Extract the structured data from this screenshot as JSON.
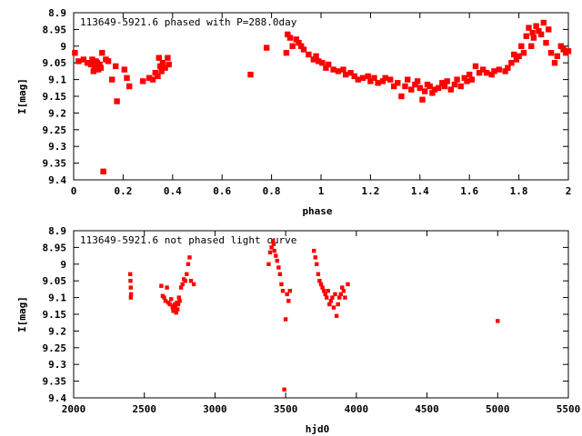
{
  "chart_data": [
    {
      "type": "scatter",
      "title": "113649-5921.6 phased with P=288.0day",
      "xlabel": "phase",
      "ylabel": "I[mag]",
      "xlim": [
        0,
        2
      ],
      "ylim": [
        9.4,
        8.9
      ],
      "y_inverted": true,
      "x_ticks": [
        "0",
        "0.2",
        "0.4",
        "0.6",
        "0.8",
        "1",
        "1.2",
        "1.4",
        "1.6",
        "1.8",
        "2"
      ],
      "y_ticks": [
        "8.9",
        "8.95",
        "9",
        "9.05",
        "9.1",
        "9.15",
        "9.2",
        "9.25",
        "9.3",
        "9.35",
        "9.4"
      ],
      "marker_color": "#ff0000",
      "grid": false,
      "points": [
        [
          0.005,
          9.02
        ],
        [
          0.02,
          9.045
        ],
        [
          0.04,
          9.04
        ],
        [
          0.055,
          9.05
        ],
        [
          0.07,
          9.055
        ],
        [
          0.075,
          9.04
        ],
        [
          0.08,
          9.075
        ],
        [
          0.085,
          9.06
        ],
        [
          0.09,
          9.045
        ],
        [
          0.095,
          9.05
        ],
        [
          0.1,
          9.07
        ],
        [
          0.105,
          9.055
        ],
        [
          0.11,
          9.065
        ],
        [
          0.115,
          9.02
        ],
        [
          0.12,
          9.375
        ],
        [
          0.13,
          9.04
        ],
        [
          0.14,
          9.045
        ],
        [
          0.155,
          9.1
        ],
        [
          0.17,
          9.06
        ],
        [
          0.175,
          9.165
        ],
        [
          0.205,
          9.07
        ],
        [
          0.215,
          9.095
        ],
        [
          0.225,
          9.12
        ],
        [
          0.28,
          9.105
        ],
        [
          0.305,
          9.095
        ],
        [
          0.32,
          9.1
        ],
        [
          0.33,
          9.08
        ],
        [
          0.34,
          9.09
        ],
        [
          0.345,
          9.035
        ],
        [
          0.35,
          9.06
        ],
        [
          0.355,
          9.075
        ],
        [
          0.36,
          9.05
        ],
        [
          0.37,
          9.065
        ],
        [
          0.38,
          9.035
        ],
        [
          0.385,
          9.055
        ],
        [
          0.715,
          9.085
        ],
        [
          0.78,
          9.005
        ],
        [
          0.86,
          9.02
        ],
        [
          0.865,
          8.965
        ],
        [
          0.875,
          8.975
        ],
        [
          0.885,
          9.0
        ],
        [
          0.9,
          8.98
        ],
        [
          0.91,
          8.99
        ],
        [
          0.92,
          9.0
        ],
        [
          0.93,
          9.01
        ],
        [
          0.95,
          9.025
        ],
        [
          0.97,
          9.04
        ],
        [
          0.98,
          9.03
        ],
        [
          0.99,
          9.045
        ],
        [
          1.005,
          9.05
        ],
        [
          1.02,
          9.065
        ],
        [
          1.03,
          9.055
        ],
        [
          1.05,
          9.07
        ],
        [
          1.07,
          9.075
        ],
        [
          1.09,
          9.07
        ],
        [
          1.1,
          9.085
        ],
        [
          1.12,
          9.08
        ],
        [
          1.135,
          9.09
        ],
        [
          1.15,
          9.1
        ],
        [
          1.17,
          9.095
        ],
        [
          1.19,
          9.09
        ],
        [
          1.2,
          9.105
        ],
        [
          1.215,
          9.095
        ],
        [
          1.23,
          9.11
        ],
        [
          1.25,
          9.105
        ],
        [
          1.26,
          9.095
        ],
        [
          1.28,
          9.1
        ],
        [
          1.295,
          9.12
        ],
        [
          1.31,
          9.11
        ],
        [
          1.325,
          9.15
        ],
        [
          1.34,
          9.12
        ],
        [
          1.35,
          9.1
        ],
        [
          1.365,
          9.13
        ],
        [
          1.38,
          9.115
        ],
        [
          1.39,
          9.105
        ],
        [
          1.4,
          9.125
        ],
        [
          1.41,
          9.16
        ],
        [
          1.42,
          9.135
        ],
        [
          1.43,
          9.115
        ],
        [
          1.44,
          9.12
        ],
        [
          1.45,
          9.14
        ],
        [
          1.46,
          9.13
        ],
        [
          1.475,
          9.125
        ],
        [
          1.49,
          9.11
        ],
        [
          1.5,
          9.12
        ],
        [
          1.51,
          9.105
        ],
        [
          1.525,
          9.13
        ],
        [
          1.54,
          9.115
        ],
        [
          1.55,
          9.1
        ],
        [
          1.565,
          9.12
        ],
        [
          1.58,
          9.095
        ],
        [
          1.59,
          9.105
        ],
        [
          1.6,
          9.085
        ],
        [
          1.61,
          9.1
        ],
        [
          1.625,
          9.06
        ],
        [
          1.64,
          9.08
        ],
        [
          1.655,
          9.07
        ],
        [
          1.67,
          9.08
        ],
        [
          1.69,
          9.085
        ],
        [
          1.7,
          9.075
        ],
        [
          1.72,
          9.07
        ],
        [
          1.745,
          9.075
        ],
        [
          1.755,
          9.065
        ],
        [
          1.77,
          9.05
        ],
        [
          1.78,
          9.025
        ],
        [
          1.79,
          9.04
        ],
        [
          1.8,
          9.03
        ],
        [
          1.81,
          9.0
        ],
        [
          1.82,
          9.02
        ],
        [
          1.83,
          8.97
        ],
        [
          1.84,
          8.945
        ],
        [
          1.85,
          9.0
        ],
        [
          1.855,
          8.96
        ],
        [
          1.86,
          8.975
        ],
        [
          1.87,
          8.94
        ],
        [
          1.88,
          8.955
        ],
        [
          1.89,
          8.965
        ],
        [
          1.9,
          8.93
        ],
        [
          1.91,
          8.99
        ],
        [
          1.92,
          8.95
        ],
        [
          1.93,
          9.02
        ],
        [
          1.945,
          9.05
        ],
        [
          1.955,
          9.03
        ],
        [
          1.97,
          9.0
        ],
        [
          1.98,
          9.01
        ],
        [
          1.99,
          9.02
        ],
        [
          2.0,
          9.015
        ]
      ]
    },
    {
      "type": "scatter",
      "title": "113649-5921.6 not phased light curve",
      "xlabel": "hjd0",
      "ylabel": "I[mag]",
      "xlim": [
        2000,
        5500
      ],
      "ylim": [
        9.4,
        8.9
      ],
      "y_inverted": true,
      "x_ticks": [
        "2000",
        "2500",
        "3000",
        "3500",
        "4000",
        "4500",
        "5000",
        "5500"
      ],
      "y_ticks": [
        "8.9",
        "8.95",
        "9",
        "9.05",
        "9.1",
        "9.15",
        "9.2",
        "9.25",
        "9.3",
        "9.35",
        "9.4"
      ],
      "marker_color": "#ff0000",
      "grid": false,
      "points": [
        [
          2400,
          9.03
        ],
        [
          2402,
          9.05
        ],
        [
          2404,
          9.07
        ],
        [
          2406,
          9.09
        ],
        [
          2405,
          9.1
        ],
        [
          2620,
          9.065
        ],
        [
          2630,
          9.095
        ],
        [
          2640,
          9.1
        ],
        [
          2650,
          9.11
        ],
        [
          2660,
          9.07
        ],
        [
          2670,
          9.115
        ],
        [
          2680,
          9.12
        ],
        [
          2690,
          9.105
        ],
        [
          2700,
          9.13
        ],
        [
          2705,
          9.14
        ],
        [
          2710,
          9.125
        ],
        [
          2715,
          9.12
        ],
        [
          2720,
          9.13
        ],
        [
          2725,
          9.145
        ],
        [
          2730,
          9.115
        ],
        [
          2735,
          9.135
        ],
        [
          2740,
          9.12
        ],
        [
          2745,
          9.1
        ],
        [
          2750,
          9.11
        ],
        [
          2760,
          9.07
        ],
        [
          2770,
          9.06
        ],
        [
          2780,
          9.045
        ],
        [
          2790,
          9.05
        ],
        [
          2800,
          9.03
        ],
        [
          2810,
          9.0
        ],
        [
          2820,
          8.98
        ],
        [
          2830,
          9.05
        ],
        [
          2850,
          9.06
        ],
        [
          3380,
          9.0
        ],
        [
          3390,
          8.965
        ],
        [
          3400,
          8.95
        ],
        [
          3410,
          8.93
        ],
        [
          3415,
          8.94
        ],
        [
          3420,
          8.96
        ],
        [
          3430,
          8.975
        ],
        [
          3440,
          8.99
        ],
        [
          3450,
          9.01
        ],
        [
          3460,
          9.03
        ],
        [
          3470,
          9.06
        ],
        [
          3480,
          9.08
        ],
        [
          3490,
          9.375
        ],
        [
          3500,
          9.165
        ],
        [
          3510,
          9.09
        ],
        [
          3520,
          9.11
        ],
        [
          3530,
          9.08
        ],
        [
          3700,
          8.96
        ],
        [
          3710,
          8.98
        ],
        [
          3720,
          9.0
        ],
        [
          3730,
          9.03
        ],
        [
          3740,
          9.05
        ],
        [
          3750,
          9.06
        ],
        [
          3760,
          9.07
        ],
        [
          3770,
          9.08
        ],
        [
          3780,
          9.09
        ],
        [
          3790,
          9.1
        ],
        [
          3800,
          9.08
        ],
        [
          3810,
          9.12
        ],
        [
          3820,
          9.11
        ],
        [
          3830,
          9.1
        ],
        [
          3840,
          9.13
        ],
        [
          3850,
          9.09
        ],
        [
          3860,
          9.155
        ],
        [
          3870,
          9.12
        ],
        [
          3880,
          9.1
        ],
        [
          3890,
          9.09
        ],
        [
          3900,
          9.07
        ],
        [
          3910,
          9.08
        ],
        [
          3920,
          9.1
        ],
        [
          3940,
          9.06
        ],
        [
          5000,
          9.17
        ]
      ]
    }
  ]
}
